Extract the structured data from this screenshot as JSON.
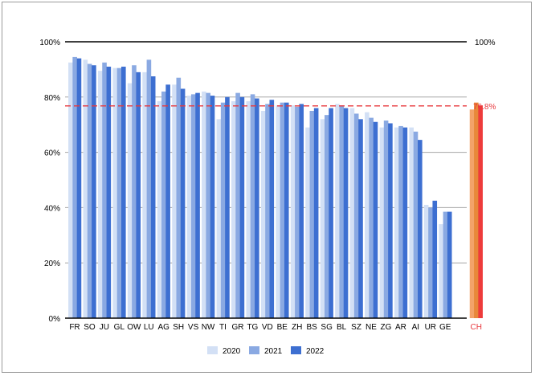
{
  "chart_data": {
    "type": "bar",
    "title": "",
    "xlabel": "",
    "ylabel": "",
    "ylim": [
      0,
      100
    ],
    "yticks": [
      "0%",
      "20%",
      "40%",
      "60%",
      "80%",
      "100%"
    ],
    "right_axis_label": "100%",
    "reference_line": {
      "value": 76.8,
      "label": "76.8%",
      "color": "#e8383d"
    },
    "categories": [
      "FR",
      "SO",
      "JU",
      "GL",
      "OW",
      "LU",
      "AG",
      "SH",
      "VS",
      "NW",
      "TI",
      "GR",
      "TG",
      "VD",
      "BE",
      "ZH",
      "BS",
      "SG",
      "BL",
      "SZ",
      "NE",
      "ZG",
      "AR",
      "AI",
      "UR",
      "GE",
      "CH"
    ],
    "highlight_category": "CH",
    "series": [
      {
        "name": "2020",
        "color": "#d3e0f5",
        "highlight_color": "#f3a36a",
        "values": [
          92.5,
          93.5,
          89.5,
          90.5,
          85.0,
          89.0,
          78.5,
          84.5,
          80.5,
          82.0,
          72.0,
          78.5,
          78.5,
          75.0,
          77.0,
          77.0,
          69.0,
          72.0,
          77.5,
          76.0,
          74.5,
          69.0,
          69.0,
          69.0,
          41.0,
          34.0,
          75.5
        ]
      },
      {
        "name": "2021",
        "color": "#8aa9e2",
        "highlight_color": "#e8883a",
        "values": [
          94.5,
          92.0,
          92.5,
          90.5,
          91.5,
          93.5,
          82.0,
          87.0,
          81.0,
          81.5,
          78.0,
          81.5,
          81.0,
          77.5,
          78.0,
          76.5,
          75.0,
          73.5,
          77.0,
          74.0,
          72.5,
          71.5,
          69.5,
          67.5,
          40.0,
          38.5,
          78.0
        ]
      },
      {
        "name": "2022",
        "color": "#3d6fd1",
        "highlight_color": "#ee3b3b",
        "values": [
          94.0,
          91.5,
          91.0,
          91.0,
          89.0,
          87.5,
          84.5,
          83.0,
          81.5,
          80.5,
          80.0,
          80.0,
          79.5,
          79.0,
          78.0,
          77.5,
          76.0,
          76.0,
          76.0,
          72.0,
          71.0,
          70.5,
          69.0,
          64.5,
          42.5,
          38.5,
          77.0
        ]
      }
    ],
    "legend": {
      "position": "bottom",
      "entries": [
        "2020",
        "2021",
        "2022"
      ]
    },
    "grid": true
  }
}
